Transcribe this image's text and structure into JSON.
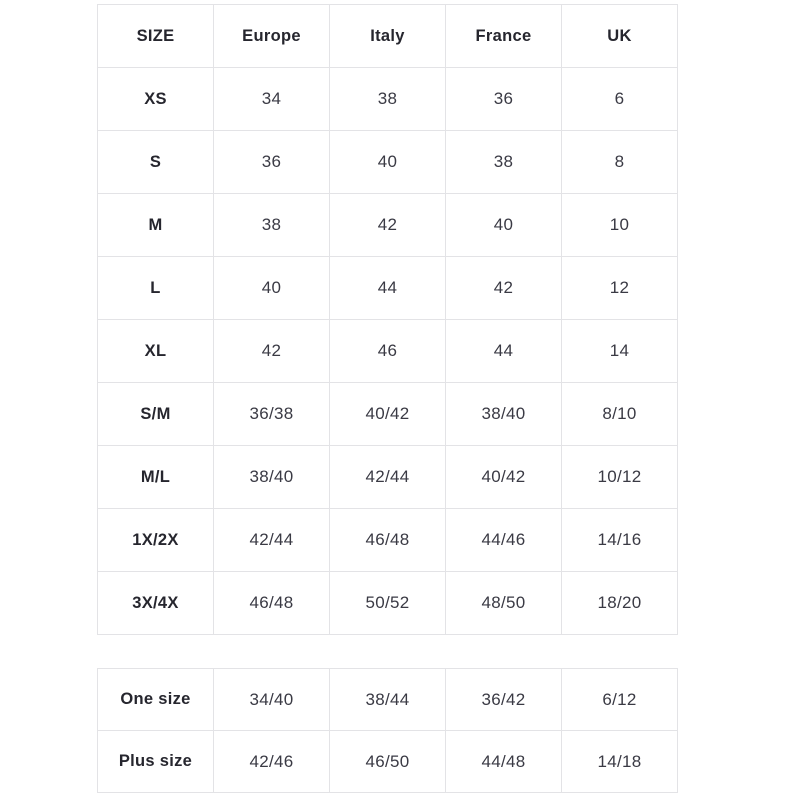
{
  "style": {
    "background": "#ffffff",
    "border_color": "#e3e3e6",
    "header_text_color": "#26262e",
    "value_text_color": "#3a3a44"
  },
  "chart_data": [
    {
      "type": "table",
      "name": "size-conversion-table",
      "columns": [
        "SIZE",
        "Europe",
        "Italy",
        "France",
        "UK"
      ],
      "rows": [
        {
          "label": "XS",
          "values": [
            "34",
            "38",
            "36",
            "6"
          ]
        },
        {
          "label": "S",
          "values": [
            "36",
            "40",
            "38",
            "8"
          ]
        },
        {
          "label": "M",
          "values": [
            "38",
            "42",
            "40",
            "10"
          ]
        },
        {
          "label": "L",
          "values": [
            "40",
            "44",
            "42",
            "12"
          ]
        },
        {
          "label": "XL",
          "values": [
            "42",
            "46",
            "44",
            "14"
          ]
        },
        {
          "label": "S/M",
          "values": [
            "36/38",
            "40/42",
            "38/40",
            "8/10"
          ]
        },
        {
          "label": "M/L",
          "values": [
            "38/40",
            "42/44",
            "40/42",
            "10/12"
          ]
        },
        {
          "label": "1X/2X",
          "values": [
            "42/44",
            "46/48",
            "44/46",
            "14/16"
          ]
        },
        {
          "label": "3X/4X",
          "values": [
            "46/48",
            "50/52",
            "48/50",
            "18/20"
          ]
        }
      ]
    },
    {
      "type": "table",
      "name": "special-sizes-table",
      "columns": [],
      "rows": [
        {
          "label": "One size",
          "values": [
            "34/40",
            "38/44",
            "36/42",
            "6/12"
          ]
        },
        {
          "label": "Plus size",
          "values": [
            "42/46",
            "46/50",
            "44/48",
            "14/18"
          ]
        }
      ]
    }
  ]
}
